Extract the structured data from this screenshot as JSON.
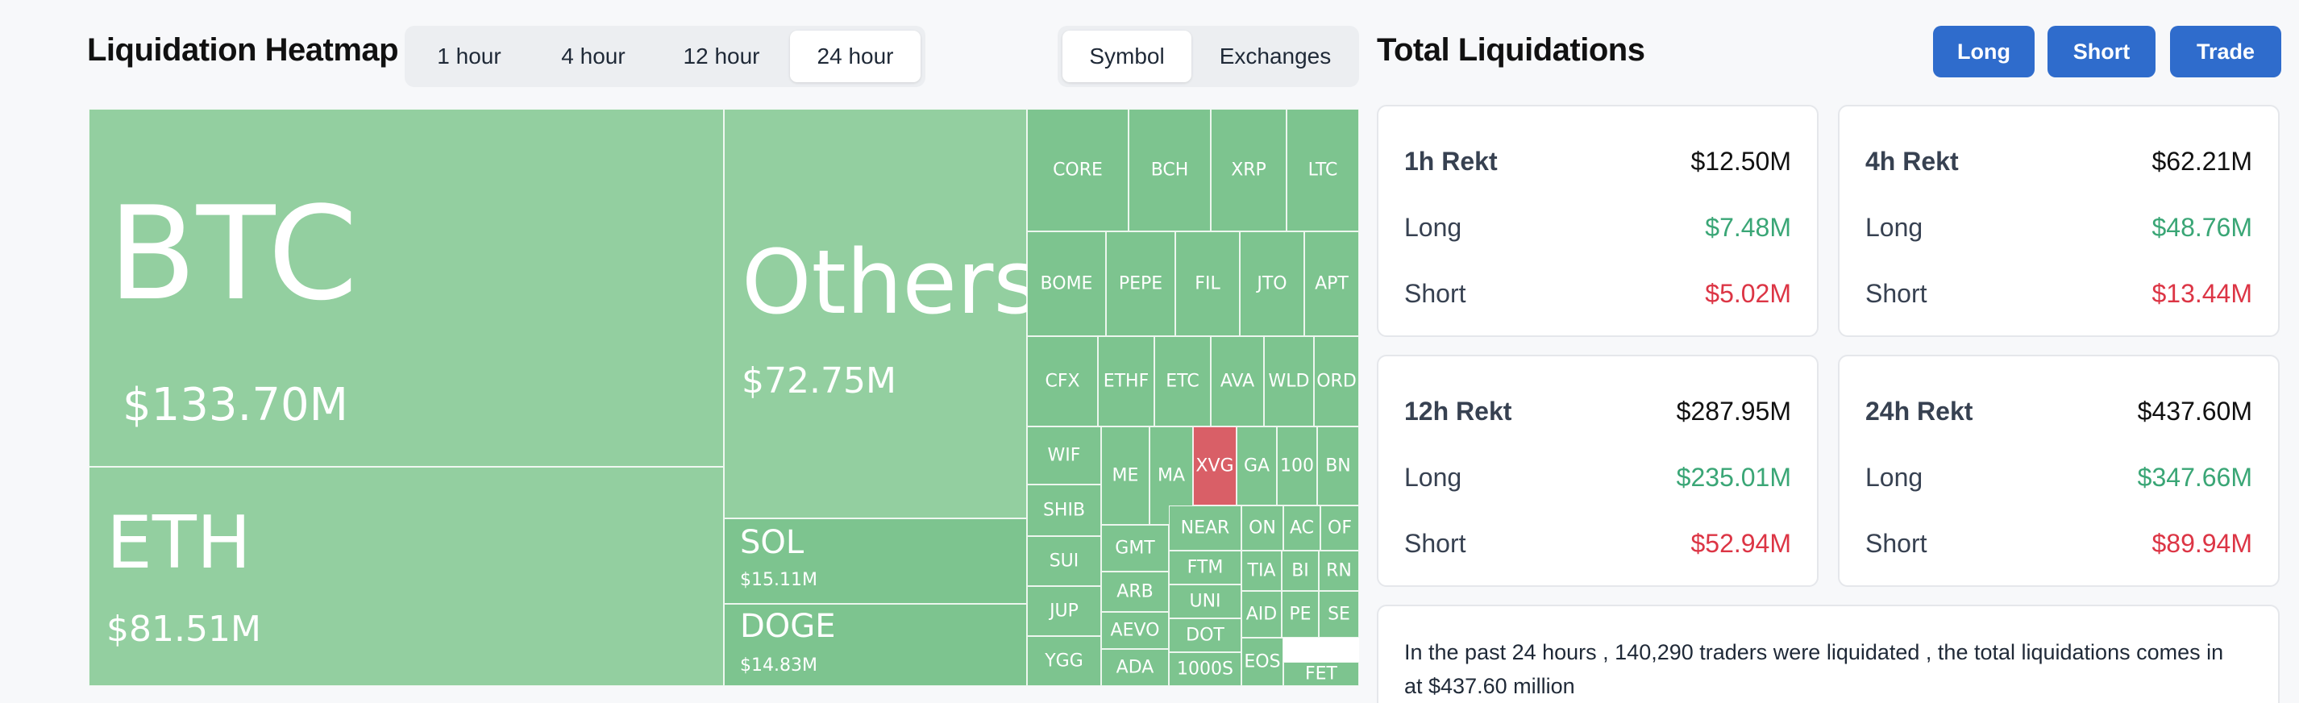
{
  "heatmap": {
    "title": "Liquidation Heatmap",
    "time_tabs": [
      "1 hour",
      "4 hour",
      "12 hour",
      "24 hour"
    ],
    "active_time_tab": "24 hour",
    "mode_tabs": [
      "Symbol",
      "Exchanges"
    ],
    "active_mode_tab": "Symbol",
    "tiles": [
      {
        "symbol": "BTC",
        "value": "$133.70M"
      },
      {
        "symbol": "ETH",
        "value": "$81.51M"
      },
      {
        "symbol": "Others",
        "value": "$72.75M"
      },
      {
        "symbol": "SOL",
        "value": "$15.11M"
      },
      {
        "symbol": "DOGE",
        "value": "$14.83M"
      },
      {
        "symbol": "CORE"
      },
      {
        "symbol": "BCH"
      },
      {
        "symbol": "XRP"
      },
      {
        "symbol": "LTC"
      },
      {
        "symbol": "BOME"
      },
      {
        "symbol": "PEPE"
      },
      {
        "symbol": "FIL"
      },
      {
        "symbol": "JTO"
      },
      {
        "symbol": "APT"
      },
      {
        "symbol": "CFX"
      },
      {
        "symbol": "ETHF"
      },
      {
        "symbol": "ETC"
      },
      {
        "symbol": "AVA"
      },
      {
        "symbol": "WLD"
      },
      {
        "symbol": "ORD"
      },
      {
        "symbol": "WIF"
      },
      {
        "symbol": "ME"
      },
      {
        "symbol": "MA"
      },
      {
        "symbol": "XVG",
        "negative": true
      },
      {
        "symbol": "GA"
      },
      {
        "symbol": "100"
      },
      {
        "symbol": "BN"
      },
      {
        "symbol": "SHIB"
      },
      {
        "symbol": "SUI"
      },
      {
        "symbol": "JUP"
      },
      {
        "symbol": "YGG"
      },
      {
        "symbol": "GMT"
      },
      {
        "symbol": "ARB"
      },
      {
        "symbol": "AEVO"
      },
      {
        "symbol": "ADA"
      },
      {
        "symbol": "NEAR"
      },
      {
        "symbol": "FTM"
      },
      {
        "symbol": "UNI"
      },
      {
        "symbol": "DOT"
      },
      {
        "symbol": "1000S"
      },
      {
        "symbol": "ON"
      },
      {
        "symbol": "AC"
      },
      {
        "symbol": "OF"
      },
      {
        "symbol": "TIA"
      },
      {
        "symbol": "BI"
      },
      {
        "symbol": "RN"
      },
      {
        "symbol": "AID"
      },
      {
        "symbol": "PE"
      },
      {
        "symbol": "SE"
      },
      {
        "symbol": "EOS"
      },
      {
        "symbol": "FET"
      }
    ]
  },
  "total": {
    "title": "Total Liquidations",
    "buttons": {
      "long": "Long",
      "short": "Short",
      "trade": "Trade"
    },
    "cards": [
      {
        "title": "1h Rekt",
        "total": "$12.50M",
        "long_label": "Long",
        "long": "$7.48M",
        "short_label": "Short",
        "short": "$5.02M"
      },
      {
        "title": "4h Rekt",
        "total": "$62.21M",
        "long_label": "Long",
        "long": "$48.76M",
        "short_label": "Short",
        "short": "$13.44M"
      },
      {
        "title": "12h Rekt",
        "total": "$287.95M",
        "long_label": "Long",
        "long": "$235.01M",
        "short_label": "Short",
        "short": "$52.94M"
      },
      {
        "title": "24h Rekt",
        "total": "$437.60M",
        "long_label": "Long",
        "long": "$347.66M",
        "short_label": "Short",
        "short": "$89.94M"
      }
    ],
    "summary": "In the past 24 hours , 140,290 traders were liquidated , the total liquidations comes in at $437.60 million"
  },
  "colors": {
    "big_tile": "#93cfa0",
    "small_tile": "#7dc48f",
    "negative_tile": "#d95f67",
    "button": "#2f6ccc",
    "long": "#3aa676",
    "short": "#dc3545"
  }
}
